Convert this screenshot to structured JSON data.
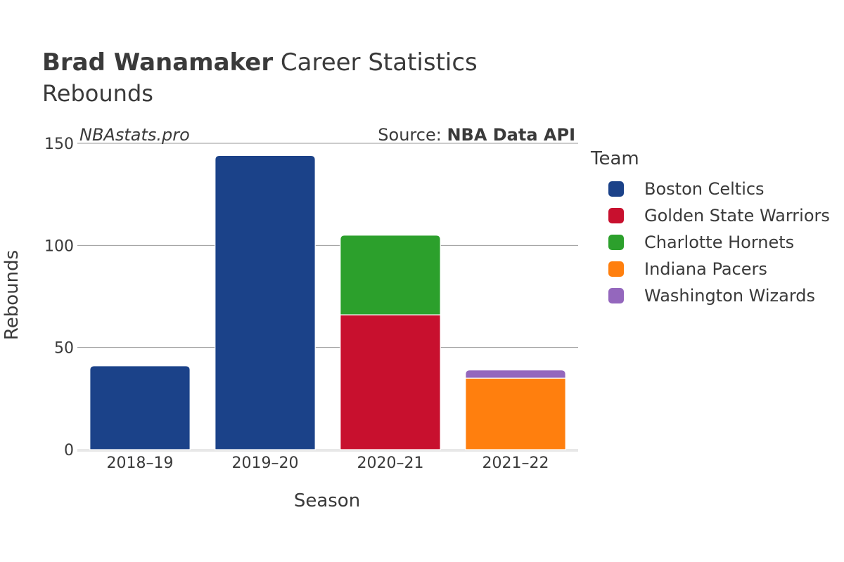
{
  "title": {
    "player": "Brad Wanamaker",
    "rest": "Career Statistics"
  },
  "subtitle": "Rebounds",
  "watermark": "NBAstats.pro",
  "source": {
    "label": "Source: ",
    "value": "NBA Data API"
  },
  "legend": {
    "title": "Team",
    "items": [
      {
        "label": "Boston Celtics",
        "color": "#1b4289"
      },
      {
        "label": "Golden State Warriors",
        "color": "#c8102e"
      },
      {
        "label": "Charlotte Hornets",
        "color": "#2ca02c"
      },
      {
        "label": "Indiana Pacers",
        "color": "#ff7f0e"
      },
      {
        "label": "Washington Wizards",
        "color": "#9467bd"
      }
    ]
  },
  "chart_data": {
    "type": "bar",
    "stacked": true,
    "xlabel": "Season",
    "ylabel": "Rebounds",
    "ylim": [
      0,
      150
    ],
    "yticks": [
      0,
      50,
      100,
      150
    ],
    "categories": [
      "2018–19",
      "2019–20",
      "2020–21",
      "2021–22"
    ],
    "series": [
      {
        "name": "Boston Celtics",
        "color": "#1b4289",
        "values": [
          41,
          144,
          0,
          0
        ]
      },
      {
        "name": "Golden State Warriors",
        "color": "#c8102e",
        "values": [
          0,
          0,
          66,
          0
        ]
      },
      {
        "name": "Charlotte Hornets",
        "color": "#2ca02c",
        "values": [
          0,
          0,
          39,
          0
        ]
      },
      {
        "name": "Indiana Pacers",
        "color": "#ff7f0e",
        "values": [
          0,
          0,
          0,
          35
        ]
      },
      {
        "name": "Washington Wizards",
        "color": "#9467bd",
        "values": [
          0,
          0,
          0,
          4
        ]
      }
    ],
    "grid": true,
    "legend_position": "right"
  }
}
